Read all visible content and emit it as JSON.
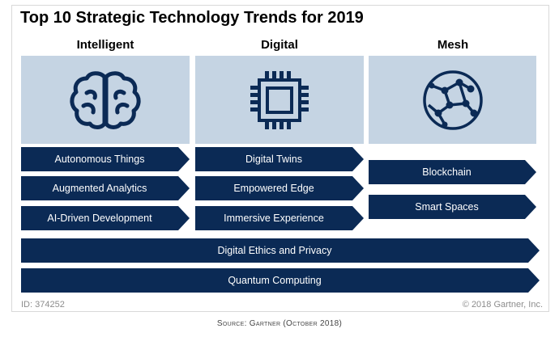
{
  "title": "Top 10 Strategic Technology Trends for 2019",
  "columns": [
    {
      "heading": "Intelligent",
      "icon": "brain-icon",
      "items": [
        "Autonomous Things",
        "Augmented Analytics",
        "AI-Driven Development"
      ]
    },
    {
      "heading": "Digital",
      "icon": "chip-icon",
      "items": [
        "Digital Twins",
        "Empowered Edge",
        "Immersive Experience"
      ]
    },
    {
      "heading": "Mesh",
      "icon": "network-globe-icon",
      "items": [
        "Blockchain",
        "Smart Spaces"
      ]
    }
  ],
  "cross_trends": [
    "Digital Ethics and Privacy",
    "Quantum Computing"
  ],
  "footer": {
    "id": "ID: 374252",
    "copyright": "© 2018 Gartner, Inc."
  },
  "source": "Source: Gartner (October 2018)",
  "colors": {
    "chevron": "#0b2a55",
    "icon_panel": "#c5d4e3",
    "icon_stroke": "#0b2a55"
  }
}
